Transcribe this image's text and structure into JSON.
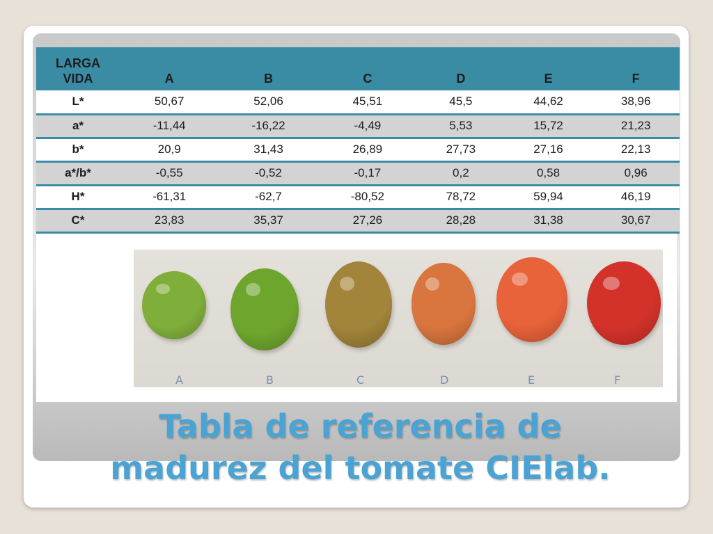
{
  "table": {
    "corner_label": [
      "LARGA",
      "VIDA"
    ],
    "columns": [
      "A",
      "B",
      "C",
      "D",
      "E",
      "F"
    ],
    "rows": [
      {
        "label": "L*",
        "values": [
          "50,67",
          "52,06",
          "45,51",
          "45,5",
          "44,62",
          "38,96"
        ]
      },
      {
        "label": "a*",
        "values": [
          "-11,44",
          "-16,22",
          "-4,49",
          "5,53",
          "15,72",
          "21,23"
        ]
      },
      {
        "label": "b*",
        "values": [
          "20,9",
          "31,43",
          "26,89",
          "27,73",
          "27,16",
          "22,13"
        ]
      },
      {
        "label": "a*/b*",
        "values": [
          "-0,55",
          "-0,52",
          "-0,17",
          "0,2",
          "0,58",
          "0,96"
        ]
      },
      {
        "label": "H*",
        "values": [
          "-61,31",
          "-62,7",
          "-80,52",
          "78,72",
          "59,94",
          "46,19"
        ]
      },
      {
        "label": "C*",
        "values": [
          "23,83",
          "35,37",
          "27,26",
          "28,28",
          "31,38",
          "30,67"
        ]
      }
    ]
  },
  "photo": {
    "tomatoes": [
      {
        "label": "A",
        "color": "#7fae3a"
      },
      {
        "label": "B",
        "color": "#6ea52c"
      },
      {
        "label": "C",
        "color": "#a2843a"
      },
      {
        "label": "D",
        "color": "#d9753e"
      },
      {
        "label": "E",
        "color": "#e8623a"
      },
      {
        "label": "F",
        "color": "#d2322a"
      }
    ]
  },
  "title": {
    "line1": "Tabla de referencia de",
    "line2": "madurez del tomate CIElab."
  },
  "colors": {
    "header": "#3a8ba4",
    "title": "#4aa3d3"
  }
}
